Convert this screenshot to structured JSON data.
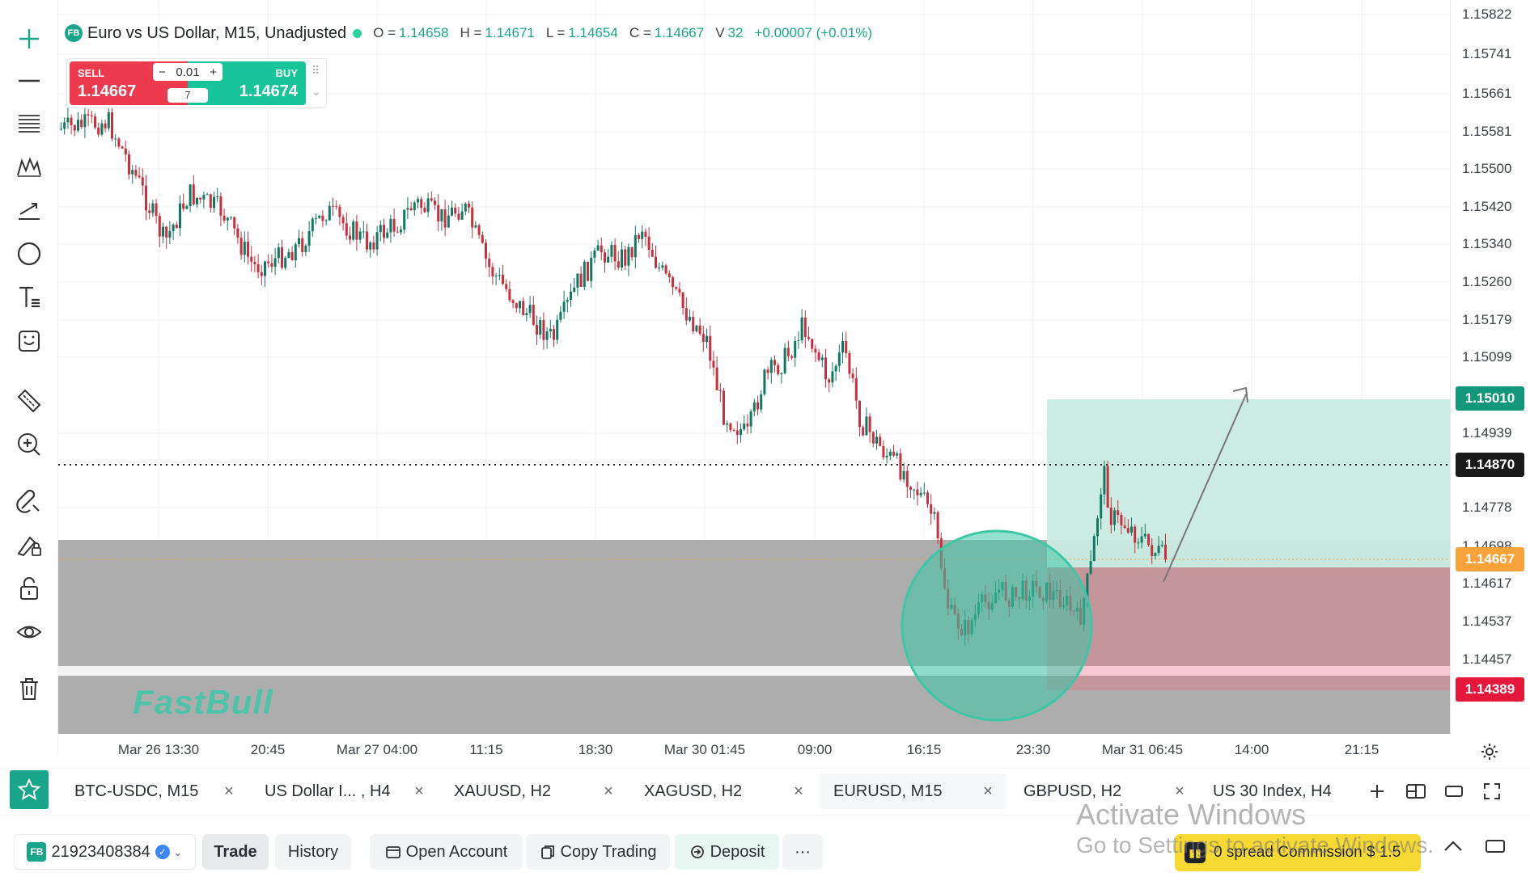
{
  "chart": {
    "symbol_title": "Euro vs US Dollar, M15, Unadjusted",
    "logo": "FB",
    "ohlc": [
      {
        "k": "O =",
        "v": "1.14658"
      },
      {
        "k": "H =",
        "v": "1.14671"
      },
      {
        "k": "L =",
        "v": "1.14654"
      },
      {
        "k": "C =",
        "v": "1.14667"
      },
      {
        "k": "V",
        "v": "32"
      }
    ],
    "change": "+0.00007 (+0.01%)",
    "watermark": "FastBull"
  },
  "trade_widget": {
    "sell_label": "SELL",
    "sell_price": "1.14667",
    "buy_label": "BUY",
    "buy_price": "1.14674",
    "lot": "0.01",
    "minus": "−",
    "plus": "+",
    "spread": "7"
  },
  "price_axis": {
    "ticks": [
      "1.15822",
      "1.15741",
      "1.15661",
      "1.15581",
      "1.15500",
      "1.15420",
      "1.15340",
      "1.15260",
      "1.15179",
      "1.15099",
      "1.14939",
      "1.14778",
      "1.14698",
      "1.14617",
      "1.14537",
      "1.14457"
    ],
    "target_badge": "1.15010",
    "dotted_badge": "1.14870",
    "current_badge": "1.14667",
    "stop_badge": "1.14389"
  },
  "time_axis": [
    "Mar 26 13:30",
    "20:45",
    "Mar 27 04:00",
    "11:15",
    "18:30",
    "Mar 30 01:45",
    "09:00",
    "16:15",
    "23:30",
    "Mar 31 06:45",
    "14:00",
    "21:15"
  ],
  "tabs": [
    {
      "label": "BTC-USDC, M15",
      "active": false
    },
    {
      "label": "US Dollar I... , H4",
      "active": false
    },
    {
      "label": "XAUUSD, H2",
      "active": false
    },
    {
      "label": "XAGUSD, H2",
      "active": false
    },
    {
      "label": "EURUSD, M15",
      "active": true
    },
    {
      "label": "GBPUSD, H2",
      "active": false
    },
    {
      "label": "US 30 Index, H4",
      "active": false
    }
  ],
  "bottom_bar": {
    "account_icon": "FB",
    "account_id": "21923408384",
    "trade": "Trade",
    "history": "History",
    "open_account": "Open Account",
    "copy_trading": "Copy Trading",
    "deposit": "Deposit",
    "more": "···",
    "promo": "0 spread Commission $ 1.5"
  },
  "os_overlay": {
    "line1": "Activate Windows",
    "line2": "Go to Settings to activate Windows."
  },
  "colors": {
    "up": "#0f7a64",
    "down": "#c9303f",
    "accent": "#19a589",
    "target_zone": "#c9ebe2",
    "stop_zone": "#c4959b",
    "gray_zone": "#adadad",
    "circle": "#3ec7a6",
    "badge_target": "#13977a",
    "badge_current": "#f7a23b",
    "badge_stop": "#e5173a"
  }
}
